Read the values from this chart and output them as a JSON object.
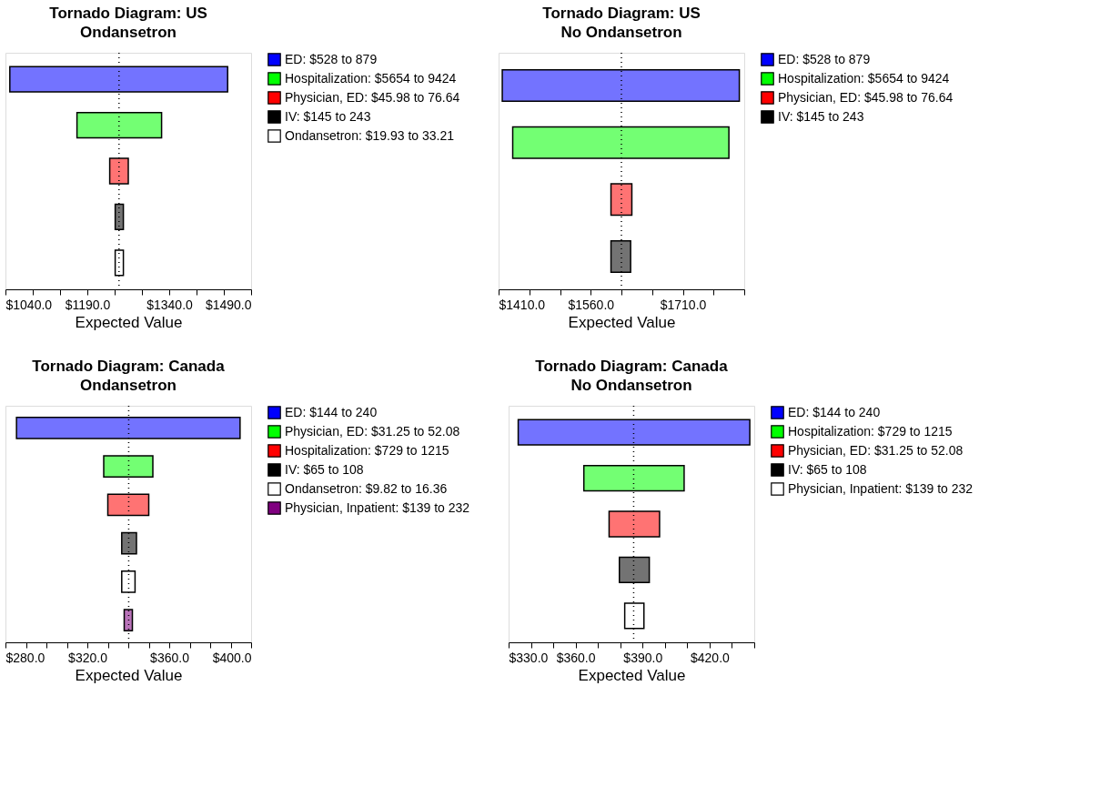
{
  "chart_data": [
    {
      "type": "bar",
      "orientation": "horizontal",
      "title": "Tornado Diagram:  US",
      "subtitle": "Ondansetron",
      "xlabel": "Expected Value",
      "categories": [
        null,
        null,
        null,
        null,
        null
      ],
      "series": [
        {
          "name": "ED: $528 to 879",
          "color": "#0000ff",
          "base": [
            1048,
            null,
            null,
            null,
            null
          ],
          "values": [
            399,
            null,
            null,
            null,
            null
          ]
        },
        {
          "name": "Hospitalization: $5654 to 9424",
          "color": "#00ff00",
          "base": [
            null,
            1171,
            null,
            null,
            null
          ],
          "values": [
            null,
            155,
            null,
            null,
            null
          ]
        },
        {
          "name": "Physician, ED: $45.98 to 76.64",
          "color": "#ff0000",
          "base": [
            null,
            null,
            1231,
            null,
            null
          ],
          "values": [
            null,
            null,
            34,
            null,
            null
          ]
        },
        {
          "name": "IV: $145 to 243",
          "color": "#000000",
          "base": [
            null,
            null,
            null,
            1241,
            null
          ],
          "values": [
            null,
            null,
            null,
            15,
            null
          ]
        },
        {
          "name": "Ondansetron: $19.93 to 33.21",
          "color": "#ffffff",
          "base": [
            null,
            null,
            null,
            null,
            1241
          ],
          "values": [
            null,
            null,
            null,
            null,
            15
          ]
        }
      ],
      "xlim": [
        1040,
        1490
      ],
      "xticks": [
        {
          "value": 1040,
          "label": "$1040.0"
        },
        {
          "value": 1090,
          "label": null
        },
        {
          "value": 1140,
          "label": null
        },
        {
          "value": 1190,
          "label": "$1190.0"
        },
        {
          "value": 1240,
          "label": null
        },
        {
          "value": 1290,
          "label": null
        },
        {
          "value": 1340,
          "label": "$1340.0"
        },
        {
          "value": 1390,
          "label": null
        },
        {
          "value": 1440,
          "label": null
        },
        {
          "value": 1490,
          "label": "$1490.0"
        }
      ],
      "ref_lines": [
        {
          "axis": "x",
          "value": 1248,
          "line_style": "dotted",
          "color": "#000000"
        }
      ],
      "legend": "right",
      "tick_labels": "x"
    },
    {
      "type": "bar",
      "orientation": "horizontal",
      "title": "Tornado Diagram:  US",
      "subtitle": "No Ondansetron",
      "xlabel": "Expected Value",
      "categories": [
        null,
        null,
        null,
        null
      ],
      "series": [
        {
          "name": "ED: $528 to 879",
          "color": "#0000ff",
          "base": [
            1416,
            null,
            null,
            null
          ],
          "values": [
            386,
            null,
            null,
            null
          ]
        },
        {
          "name": "Hospitalization: $5654 to 9424",
          "color": "#00ff00",
          "base": [
            null,
            1433,
            null,
            null
          ],
          "values": [
            null,
            352,
            null,
            null
          ]
        },
        {
          "name": "Physician, ED: $45.98 to 76.64",
          "color": "#ff0000",
          "base": [
            null,
            null,
            1593,
            null
          ],
          "values": [
            null,
            null,
            34,
            null
          ]
        },
        {
          "name": "IV: $145 to 243",
          "color": "#000000",
          "base": [
            null,
            null,
            null,
            1593
          ],
          "values": [
            null,
            null,
            null,
            32
          ]
        }
      ],
      "xlim": [
        1410,
        1810
      ],
      "xticks": [
        {
          "value": 1410,
          "label": "$1410.0"
        },
        {
          "value": 1460,
          "label": null
        },
        {
          "value": 1510,
          "label": null
        },
        {
          "value": 1560,
          "label": "$1560.0"
        },
        {
          "value": 1610,
          "label": null
        },
        {
          "value": 1660,
          "label": null
        },
        {
          "value": 1710,
          "label": "$1710.0"
        },
        {
          "value": 1760,
          "label": null
        },
        {
          "value": 1810,
          "label": null
        }
      ],
      "ref_lines": [
        {
          "axis": "x",
          "value": 1610,
          "line_style": "dotted",
          "color": "#000000"
        }
      ],
      "legend": "right",
      "tick_labels": "x"
    },
    {
      "type": "bar",
      "orientation": "horizontal",
      "title": "Tornado Diagram:  Canada",
      "subtitle": "Ondansetron",
      "xlabel": "Expected Value",
      "categories": [
        null,
        null,
        null,
        null,
        null,
        null
      ],
      "series": [
        {
          "name": "ED: $144 to 240",
          "color": "#0000ff",
          "base": [
            285.4,
            null,
            null,
            null,
            null,
            null
          ],
          "values": [
            109.2,
            null,
            null,
            null,
            null,
            null
          ]
        },
        {
          "name": "Physician, ED: $31.25 to 52.08",
          "color": "#00ff00",
          "base": [
            null,
            328,
            null,
            null,
            null,
            null
          ],
          "values": [
            null,
            24,
            null,
            null,
            null,
            null
          ]
        },
        {
          "name": "Hospitalization: $729 to 1215",
          "color": "#ff0000",
          "base": [
            null,
            null,
            330,
            null,
            null,
            null
          ],
          "values": [
            null,
            null,
            20,
            null,
            null,
            null
          ]
        },
        {
          "name": "IV: $65 to 108",
          "color": "#000000",
          "base": [
            null,
            null,
            null,
            336.8,
            null,
            null
          ],
          "values": [
            null,
            null,
            null,
            7.2,
            null,
            null
          ]
        },
        {
          "name": "Ondansetron: $9.82 to 16.36",
          "color": "#ffffff",
          "base": [
            null,
            null,
            null,
            null,
            336.8,
            null
          ],
          "values": [
            null,
            null,
            null,
            null,
            6.5,
            null
          ]
        },
        {
          "name": "Physician, Inpatient: $139 to 232",
          "color": "#800080",
          "base": [
            null,
            null,
            null,
            null,
            null,
            338
          ],
          "values": [
            null,
            null,
            null,
            null,
            null,
            4
          ]
        }
      ],
      "xlim": [
        280,
        400
      ],
      "xticks": [
        {
          "value": 280,
          "label": "$280.0"
        },
        {
          "value": 290,
          "label": null
        },
        {
          "value": 300,
          "label": null
        },
        {
          "value": 310,
          "label": null
        },
        {
          "value": 320,
          "label": "$320.0"
        },
        {
          "value": 330,
          "label": null
        },
        {
          "value": 340,
          "label": null
        },
        {
          "value": 350,
          "label": null
        },
        {
          "value": 360,
          "label": "$360.0"
        },
        {
          "value": 370,
          "label": null
        },
        {
          "value": 380,
          "label": null
        },
        {
          "value": 390,
          "label": null
        },
        {
          "value": 400,
          "label": "$400.0"
        }
      ],
      "ref_lines": [
        {
          "axis": "x",
          "value": 340.2,
          "line_style": "dotted",
          "color": "#000000"
        }
      ],
      "legend": "right",
      "tick_labels": "x"
    },
    {
      "type": "bar",
      "orientation": "horizontal",
      "title": "Tornado Diagram:  Canada",
      "subtitle": "No Ondansetron",
      "xlabel": "Expected Value",
      "categories": [
        null,
        null,
        null,
        null,
        null
      ],
      "series": [
        {
          "name": "ED: $144 to 240",
          "color": "#0000ff",
          "base": [
            334.3,
            null,
            null,
            null,
            null
          ],
          "values": [
            103.7,
            null,
            null,
            null,
            null
          ]
        },
        {
          "name": "Hospitalization: $729 to 1215",
          "color": "#00ff00",
          "base": [
            null,
            363.7,
            null,
            null,
            null
          ],
          "values": [
            null,
            44.9,
            null,
            null,
            null
          ]
        },
        {
          "name": "Physician, ED: $31.25 to 52.08",
          "color": "#ff0000",
          "base": [
            null,
            null,
            375,
            null,
            null
          ],
          "values": [
            null,
            null,
            22.6,
            null,
            null
          ]
        },
        {
          "name": "IV: $65 to 108",
          "color": "#000000",
          "base": [
            null,
            null,
            null,
            379.6,
            null
          ],
          "values": [
            null,
            null,
            null,
            13.4,
            null
          ]
        },
        {
          "name": "Physician, Inpatient: $139 to 232",
          "color": "#ffffff",
          "base": [
            null,
            null,
            null,
            null,
            382
          ],
          "values": [
            null,
            null,
            null,
            null,
            8.6
          ]
        }
      ],
      "xlim": [
        330,
        440
      ],
      "xticks": [
        {
          "value": 330,
          "label": "$330.0"
        },
        {
          "value": 340,
          "label": null
        },
        {
          "value": 350,
          "label": null
        },
        {
          "value": 360,
          "label": "$360.0"
        },
        {
          "value": 370,
          "label": null
        },
        {
          "value": 380,
          "label": null
        },
        {
          "value": 390,
          "label": "$390.0"
        },
        {
          "value": 400,
          "label": null
        },
        {
          "value": 410,
          "label": null
        },
        {
          "value": 420,
          "label": "$420.0"
        },
        {
          "value": 430,
          "label": null
        },
        {
          "value": 440,
          "label": null
        }
      ],
      "ref_lines": [
        {
          "axis": "x",
          "value": 386,
          "line_style": "dotted",
          "color": "#000000"
        }
      ],
      "legend": "right",
      "tick_labels": "x"
    }
  ]
}
